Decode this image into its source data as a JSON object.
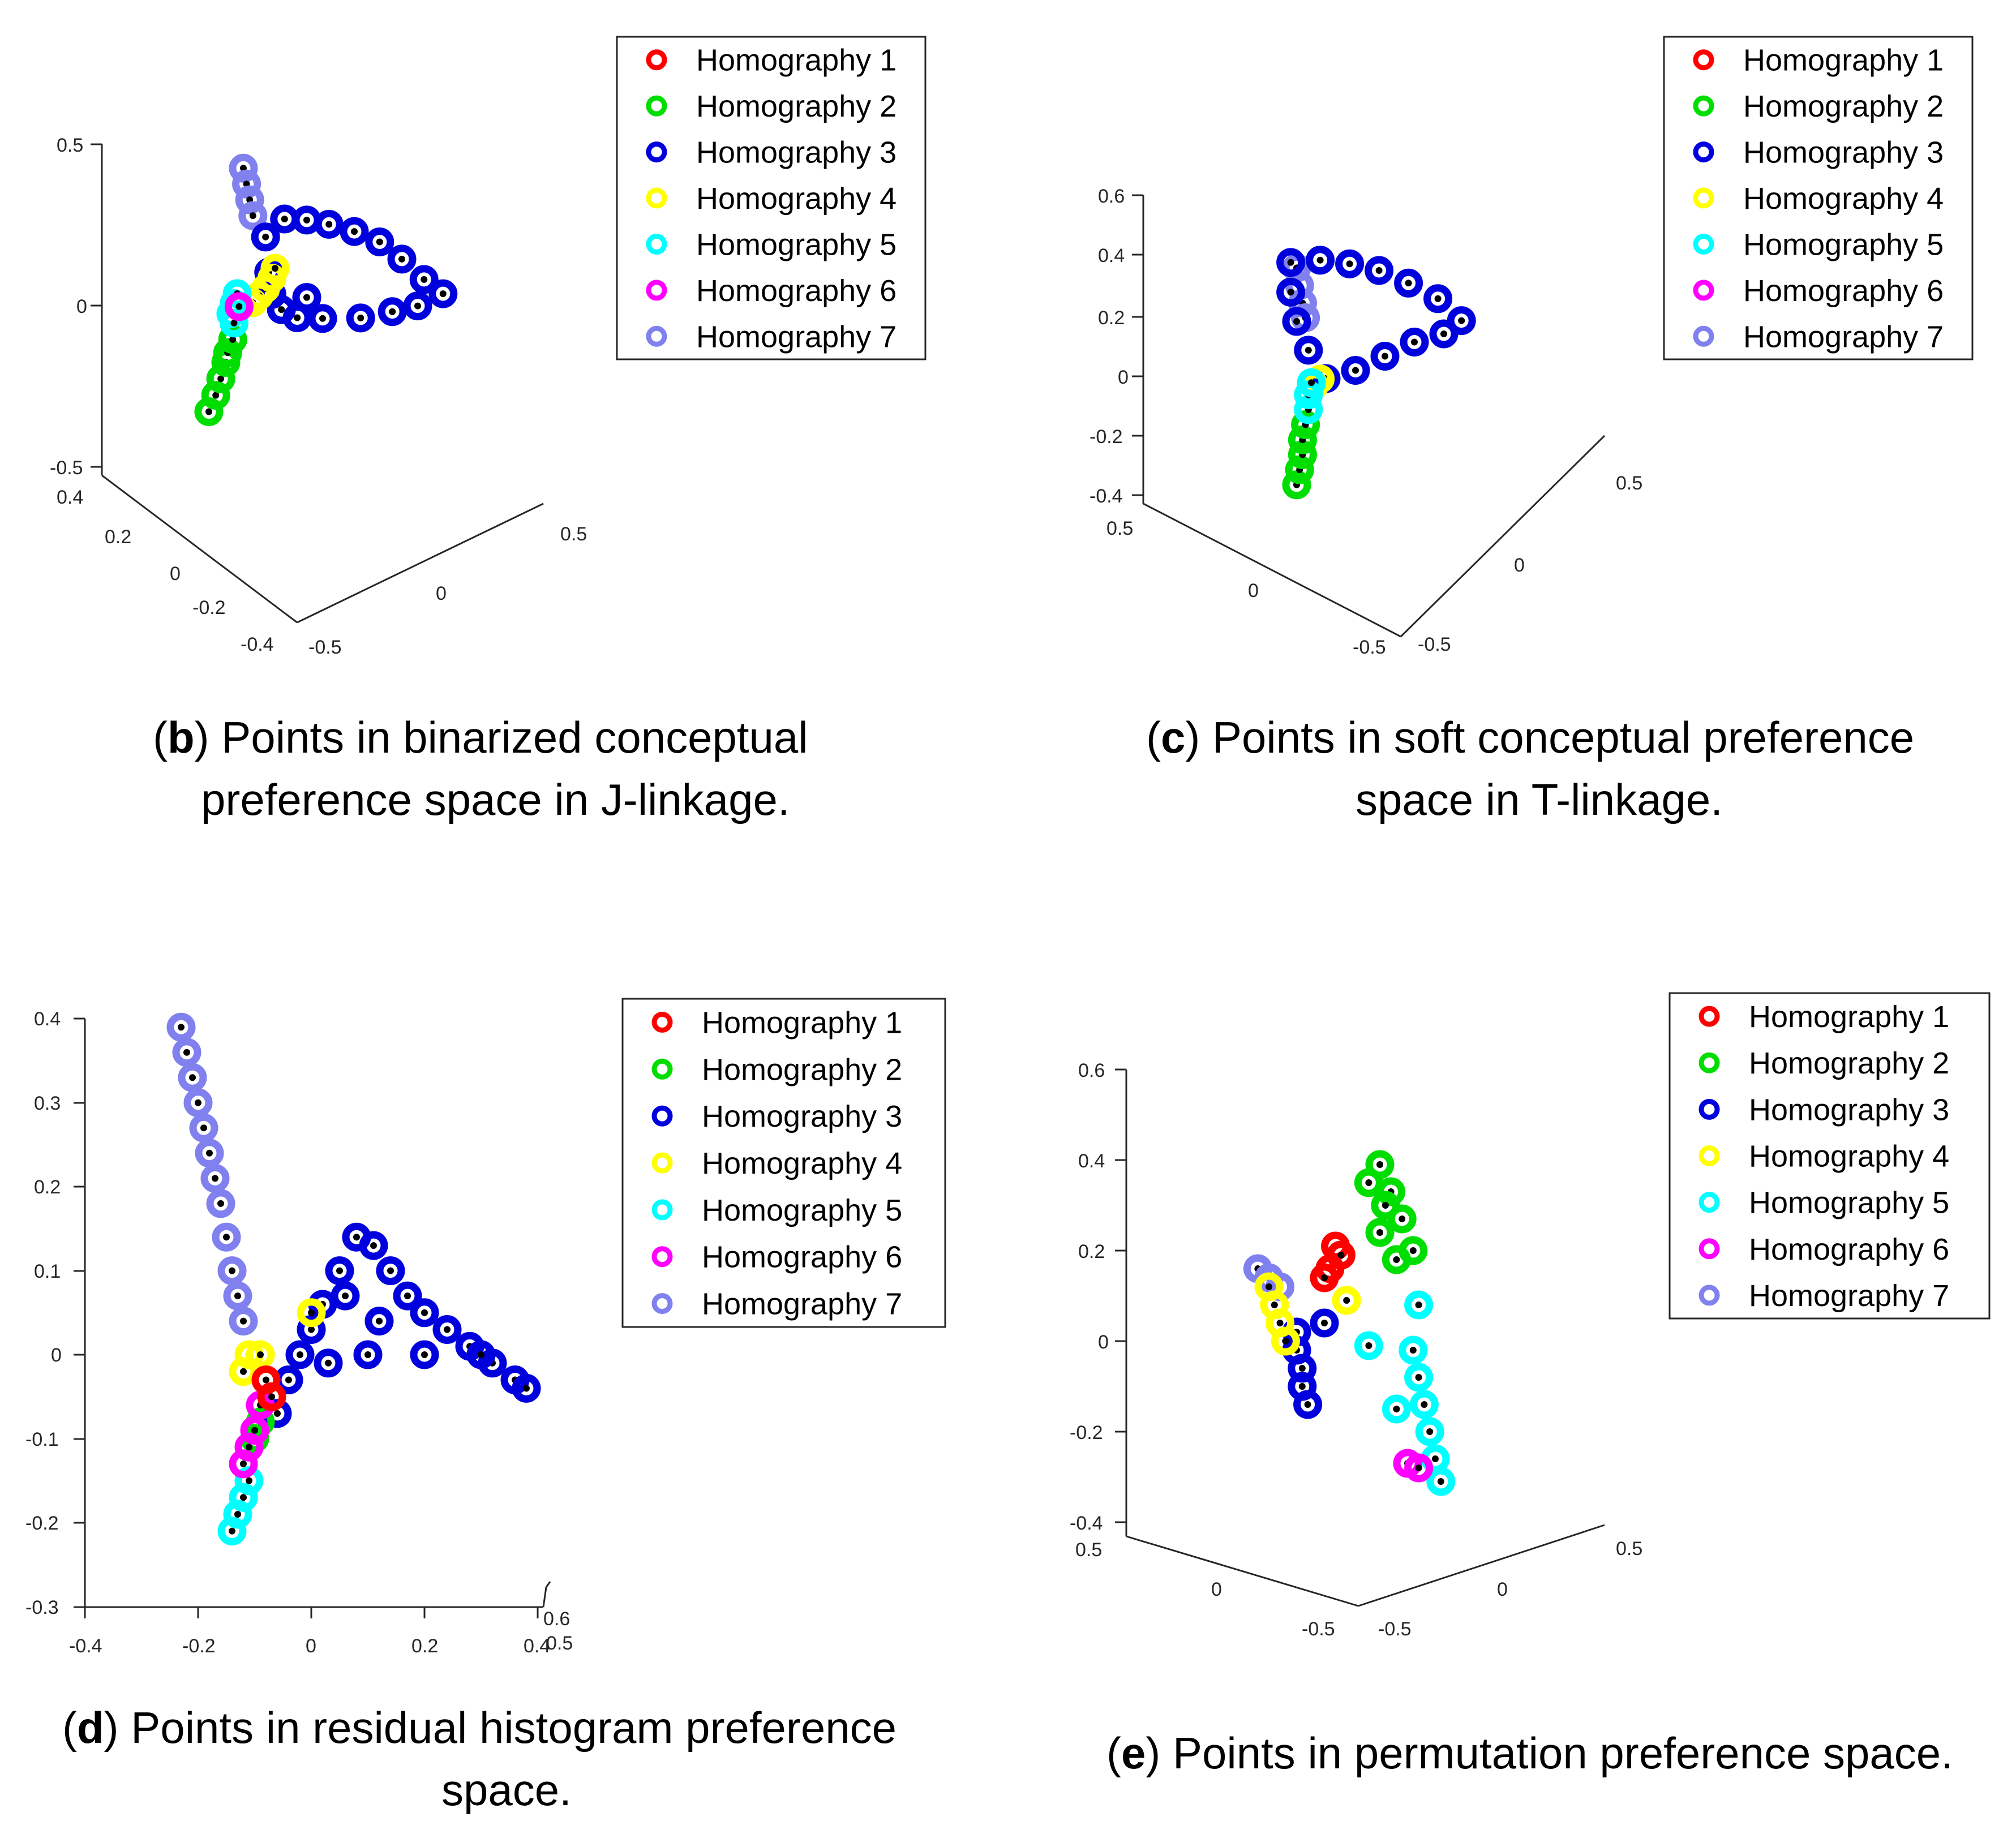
{
  "legend": {
    "labels": [
      "Homography 1",
      "Homography 2",
      "Homography 3",
      "Homography 4",
      "Homography 5",
      "Homography 6",
      "Homography 7"
    ],
    "colors": [
      "#ff0000",
      "#00dd00",
      "#0000dd",
      "#ffff00",
      "#00ffff",
      "#ff00ff",
      "#8080ee"
    ]
  },
  "captions": {
    "b": {
      "letter": "b",
      "line1": ") Points in binarized conceptual",
      "line2": "preference space in J-linkage."
    },
    "c": {
      "letter": "c",
      "line1": ") Points in soft conceptual preference",
      "line2": "space in T-linkage."
    },
    "d": {
      "letter": "d",
      "line1": ") Points in residual histogram preference",
      "line2": "space."
    },
    "e": {
      "letter": "e",
      "line1": ") Points in permutation preference space."
    }
  },
  "chart_data": [
    {
      "id": "b",
      "type": "scatter",
      "projection": "3d",
      "zlim": [
        -0.5,
        0.5
      ],
      "z_ticks": [
        "0.5",
        "0",
        "-0.5"
      ],
      "y_ticks": [
        "0.4",
        "0.2",
        "0",
        "-0.2",
        "-0.4"
      ],
      "x_ticks": [
        "-0.5",
        "0",
        "0.5"
      ],
      "legend_position": "top-right",
      "series": [
        {
          "name": "Homography 1",
          "color": "#ff0000",
          "points": []
        },
        {
          "name": "Homography 2",
          "color": "#00dd00",
          "points": [
            [
              -0.3,
              0.1,
              -0.3
            ],
            [
              -0.29,
              0.08,
              -0.25
            ],
            [
              -0.28,
              0.07,
              -0.2
            ],
            [
              -0.27,
              0.06,
              -0.15
            ],
            [
              -0.27,
              0.05,
              -0.12
            ],
            [
              -0.26,
              0.04,
              -0.08
            ]
          ]
        },
        {
          "name": "Homography 3",
          "color": "#0000dd",
          "points": [
            [
              -0.18,
              0.0,
              0.23
            ],
            [
              -0.12,
              0.0,
              0.28
            ],
            [
              -0.05,
              0.0,
              0.27
            ],
            [
              0.02,
              0.0,
              0.25
            ],
            [
              0.1,
              0.0,
              0.22
            ],
            [
              0.18,
              0.0,
              0.18
            ],
            [
              0.25,
              0.0,
              0.12
            ],
            [
              0.32,
              0.0,
              0.05
            ],
            [
              0.38,
              0.0,
              0.0
            ],
            [
              0.3,
              0.0,
              -0.03
            ],
            [
              0.22,
              0.0,
              -0.04
            ],
            [
              0.12,
              0.0,
              -0.05
            ],
            [
              0.0,
              0.0,
              -0.04
            ],
            [
              -0.08,
              0.0,
              -0.03
            ],
            [
              -0.13,
              0.0,
              0.0
            ],
            [
              -0.16,
              0.0,
              0.05
            ],
            [
              -0.17,
              0.0,
              0.12
            ],
            [
              -0.05,
              0.0,
              0.03
            ]
          ]
        },
        {
          "name": "Homography 4",
          "color": "#ffff00",
          "points": [
            [
              -0.22,
              0.0,
              0.03
            ],
            [
              -0.2,
              0.0,
              0.05
            ],
            [
              -0.18,
              0.0,
              0.07
            ],
            [
              -0.16,
              0.0,
              0.1
            ],
            [
              -0.15,
              0.0,
              0.13
            ]
          ]
        },
        {
          "name": "Homography 5",
          "color": "#00ffff",
          "points": [
            [
              -0.26,
              0.05,
              0.0
            ],
            [
              -0.25,
              0.05,
              0.03
            ],
            [
              -0.24,
              0.05,
              0.06
            ],
            [
              -0.25,
              0.05,
              -0.03
            ]
          ]
        },
        {
          "name": "Homography 6",
          "color": "#ff00ff",
          "points": [
            [
              -0.24,
              0.04,
              0.02
            ]
          ]
        },
        {
          "name": "Homography 7",
          "color": "#8080ee",
          "points": [
            [
              -0.25,
              0.0,
              0.45
            ],
            [
              -0.24,
              0.0,
              0.4
            ],
            [
              -0.23,
              0.0,
              0.35
            ],
            [
              -0.22,
              0.0,
              0.3
            ]
          ]
        }
      ]
    },
    {
      "id": "c",
      "type": "scatter",
      "projection": "3d",
      "zlim": [
        -0.4,
        0.6
      ],
      "z_ticks": [
        "0.6",
        "0.4",
        "0.2",
        "0",
        "-0.2",
        "-0.4"
      ],
      "y_ticks": [
        "0.5",
        "0",
        "-0.5"
      ],
      "x_ticks": [
        "-0.5",
        "0",
        "0.5"
      ],
      "legend_position": "top-right",
      "series": [
        {
          "name": "Homography 1",
          "color": "#ff0000",
          "points": []
        },
        {
          "name": "Homography 2",
          "color": "#00dd00",
          "points": [
            [
              -0.2,
              0.0,
              -0.35
            ],
            [
              -0.19,
              0.0,
              -0.3
            ],
            [
              -0.18,
              0.0,
              -0.25
            ],
            [
              -0.18,
              0.0,
              -0.2
            ],
            [
              -0.17,
              0.0,
              -0.15
            ]
          ]
        },
        {
          "name": "Homography 3",
          "color": "#0000dd",
          "points": [
            [
              -0.22,
              0.0,
              0.4
            ],
            [
              -0.12,
              0.0,
              0.4
            ],
            [
              -0.02,
              0.0,
              0.38
            ],
            [
              0.08,
              0.0,
              0.35
            ],
            [
              0.18,
              0.0,
              0.3
            ],
            [
              0.28,
              0.0,
              0.24
            ],
            [
              0.36,
              0.0,
              0.16
            ],
            [
              0.3,
              0.0,
              0.12
            ],
            [
              0.2,
              0.0,
              0.1
            ],
            [
              0.1,
              0.0,
              0.06
            ],
            [
              0.0,
              0.0,
              0.02
            ],
            [
              -0.1,
              0.0,
              0.0
            ],
            [
              -0.16,
              0.0,
              0.1
            ],
            [
              -0.2,
              0.0,
              0.2
            ],
            [
              -0.22,
              0.0,
              0.3
            ]
          ]
        },
        {
          "name": "Homography 4",
          "color": "#ffff00",
          "points": [
            [
              -0.14,
              0.0,
              -0.02
            ],
            [
              -0.12,
              0.0,
              0.0
            ]
          ]
        },
        {
          "name": "Homography 5",
          "color": "#00ffff",
          "points": [
            [
              -0.16,
              0.0,
              -0.1
            ],
            [
              -0.16,
              0.0,
              -0.05
            ],
            [
              -0.15,
              0.0,
              -0.01
            ]
          ]
        },
        {
          "name": "Homography 6",
          "color": "#ff00ff",
          "points": []
        },
        {
          "name": "Homography 7",
          "color": "#8080ee",
          "points": [
            [
              -0.2,
              0.0,
              0.38
            ],
            [
              -0.19,
              0.0,
              0.32
            ],
            [
              -0.18,
              0.0,
              0.26
            ],
            [
              -0.17,
              0.0,
              0.21
            ]
          ]
        }
      ]
    },
    {
      "id": "d",
      "type": "scatter",
      "projection": "3d",
      "xlim": [
        -0.4,
        0.6
      ],
      "ylim": [
        -0.3,
        0.4
      ],
      "y_ticks": [
        "0.4",
        "0.3",
        "0.2",
        "0.1",
        "0",
        "-0.1",
        "-0.2",
        "-0.3"
      ],
      "x_ticks": [
        "-0.4",
        "-0.2",
        "0",
        "0.2",
        "0.4"
      ],
      "extra_tick_labels": [
        "0.6",
        "0.5"
      ],
      "legend_position": "top-right",
      "series": [
        {
          "name": "Homography 1",
          "color": "#ff0000",
          "points": [
            [
              -0.08,
              -0.03
            ],
            [
              -0.07,
              -0.05
            ]
          ]
        },
        {
          "name": "Homography 2",
          "color": "#00dd00",
          "points": [
            [
              -0.09,
              -0.08
            ],
            [
              -0.1,
              -0.1
            ]
          ]
        },
        {
          "name": "Homography 3",
          "color": "#0000dd",
          "points": [
            [
              -0.02,
              0.0
            ],
            [
              0.0,
              0.03
            ],
            [
              0.02,
              0.06
            ],
            [
              0.05,
              0.1
            ],
            [
              0.08,
              0.14
            ],
            [
              0.11,
              0.13
            ],
            [
              0.14,
              0.1
            ],
            [
              0.17,
              0.07
            ],
            [
              0.2,
              0.05
            ],
            [
              0.24,
              0.03
            ],
            [
              0.28,
              0.01
            ],
            [
              0.32,
              -0.01
            ],
            [
              0.36,
              -0.03
            ],
            [
              0.38,
              -0.04
            ],
            [
              0.3,
              0.0
            ],
            [
              0.2,
              0.0
            ],
            [
              0.1,
              0.0
            ],
            [
              0.03,
              -0.01
            ],
            [
              -0.04,
              -0.03
            ],
            [
              -0.06,
              -0.07
            ],
            [
              0.12,
              0.04
            ],
            [
              0.06,
              0.07
            ]
          ]
        },
        {
          "name": "Homography 4",
          "color": "#ffff00",
          "points": [
            [
              -0.11,
              0.0
            ],
            [
              -0.12,
              -0.02
            ],
            [
              -0.09,
              0.0
            ],
            [
              0.0,
              0.05
            ]
          ]
        },
        {
          "name": "Homography 5",
          "color": "#00ffff",
          "points": [
            [
              -0.14,
              -0.21
            ],
            [
              -0.13,
              -0.19
            ],
            [
              -0.12,
              -0.17
            ],
            [
              -0.11,
              -0.15
            ]
          ]
        },
        {
          "name": "Homography 6",
          "color": "#ff00ff",
          "points": [
            [
              -0.12,
              -0.13
            ],
            [
              -0.11,
              -0.11
            ],
            [
              -0.1,
              -0.09
            ],
            [
              -0.09,
              -0.06
            ]
          ]
        },
        {
          "name": "Homography 7",
          "color": "#8080ee",
          "points": [
            [
              -0.23,
              0.39
            ],
            [
              -0.22,
              0.36
            ],
            [
              -0.21,
              0.33
            ],
            [
              -0.2,
              0.3
            ],
            [
              -0.19,
              0.27
            ],
            [
              -0.18,
              0.24
            ],
            [
              -0.17,
              0.21
            ],
            [
              -0.16,
              0.18
            ],
            [
              -0.15,
              0.14
            ],
            [
              -0.14,
              0.1
            ],
            [
              -0.13,
              0.07
            ],
            [
              -0.12,
              0.04
            ]
          ]
        }
      ]
    },
    {
      "id": "e",
      "type": "scatter",
      "projection": "3d",
      "zlim": [
        -0.4,
        0.6
      ],
      "z_ticks": [
        "0.6",
        "0.4",
        "0.2",
        "0",
        "-0.2",
        "-0.4"
      ],
      "y_ticks": [
        "0.5",
        "0",
        "-0.5"
      ],
      "x_ticks": [
        "-0.5",
        "0",
        "0.5"
      ],
      "legend_position": "top-right",
      "series": [
        {
          "name": "Homography 1",
          "color": "#ff0000",
          "points": [
            [
              0.02,
              0.0,
              0.21
            ],
            [
              0.03,
              0.0,
              0.19
            ],
            [
              0.01,
              0.0,
              0.16
            ],
            [
              0.0,
              0.0,
              0.14
            ]
          ]
        },
        {
          "name": "Homography 2",
          "color": "#00dd00",
          "points": [
            [
              0.1,
              0.0,
              0.39
            ],
            [
              0.08,
              0.0,
              0.35
            ],
            [
              0.12,
              0.0,
              0.33
            ],
            [
              0.11,
              0.0,
              0.3
            ],
            [
              0.14,
              0.0,
              0.27
            ],
            [
              0.1,
              0.0,
              0.24
            ],
            [
              0.16,
              0.0,
              0.2
            ],
            [
              0.13,
              0.0,
              0.18
            ]
          ]
        },
        {
          "name": "Homography 3",
          "color": "#0000dd",
          "points": [
            [
              -0.05,
              0.0,
              0.02
            ],
            [
              -0.05,
              0.0,
              -0.02
            ],
            [
              -0.04,
              0.0,
              -0.06
            ],
            [
              -0.04,
              0.0,
              -0.1
            ],
            [
              -0.03,
              0.0,
              -0.14
            ],
            [
              0.0,
              0.0,
              0.04
            ]
          ]
        },
        {
          "name": "Homography 4",
          "color": "#ffff00",
          "points": [
            [
              -0.1,
              0.0,
              0.12
            ],
            [
              -0.09,
              0.0,
              0.08
            ],
            [
              -0.08,
              0.0,
              0.04
            ],
            [
              -0.07,
              0.0,
              0.0
            ],
            [
              0.04,
              0.0,
              0.09
            ]
          ]
        },
        {
          "name": "Homography 5",
          "color": "#00ffff",
          "points": [
            [
              0.17,
              0.0,
              0.08
            ],
            [
              0.16,
              0.0,
              -0.02
            ],
            [
              0.17,
              0.0,
              -0.08
            ],
            [
              0.18,
              0.0,
              -0.14
            ],
            [
              0.19,
              0.0,
              -0.2
            ],
            [
              0.2,
              0.0,
              -0.26
            ],
            [
              0.21,
              0.0,
              -0.31
            ],
            [
              0.08,
              0.0,
              -0.01
            ],
            [
              0.13,
              0.0,
              -0.15
            ]
          ]
        },
        {
          "name": "Homography 6",
          "color": "#ff00ff",
          "points": [
            [
              0.15,
              0.0,
              -0.27
            ],
            [
              0.17,
              0.0,
              -0.28
            ]
          ]
        },
        {
          "name": "Homography 7",
          "color": "#8080ee",
          "points": [
            [
              -0.12,
              0.0,
              0.16
            ],
            [
              -0.1,
              0.0,
              0.14
            ],
            [
              -0.08,
              0.0,
              0.12
            ]
          ]
        }
      ]
    }
  ]
}
